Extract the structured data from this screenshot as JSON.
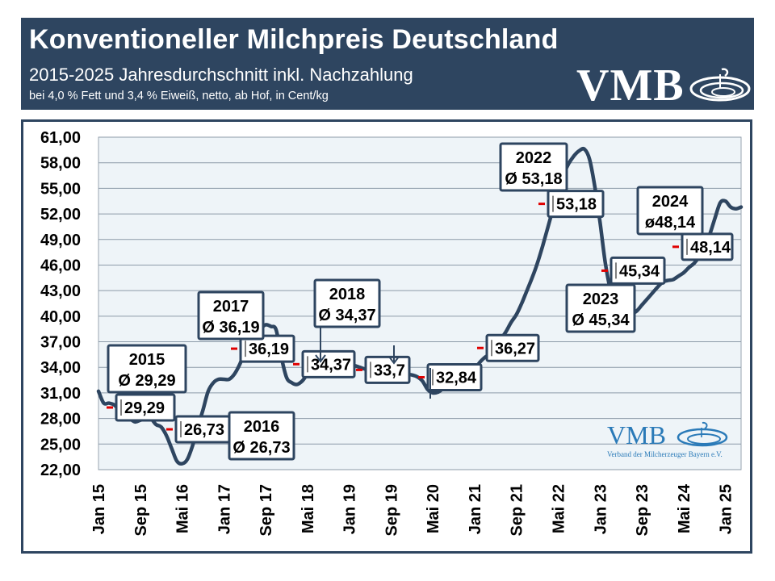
{
  "header": {
    "title": "Konventioneller Milchpreis Deutschland",
    "subtitle": "2015-2025 Jahresdurchschnitt inkl. Nachzahlung",
    "note": "bei 4,0 % Fett und 3,4 % Eiweiß, netto, ab Hof, in Cent/kg",
    "logo_text": "VMB"
  },
  "logo_bottom": {
    "text": "VMB",
    "subtext": "Verband der Milcherzeuger Bayern e.V."
  },
  "colors": {
    "header_bg": "#2e4560",
    "line": "#2e4560",
    "plot_bg": "#eef4f8",
    "grid": "#8c9aa8",
    "avg_marker": "#e00000",
    "logo_blue": "#2a7ab8"
  },
  "chart_data": {
    "type": "line",
    "title": "Konventioneller Milchpreis Deutschland",
    "subtitle": "2015-2025 Jahresdurchschnitt inkl. Nachzahlung",
    "ylabel": "",
    "xlabel": "",
    "ylim": [
      22,
      61
    ],
    "y_ticks": [
      "61,00",
      "58,00",
      "55,00",
      "52,00",
      "49,00",
      "46,00",
      "43,00",
      "40,00",
      "37,00",
      "34,00",
      "31,00",
      "28,00",
      "25,00",
      "22,00"
    ],
    "y_tick_values": [
      61,
      58,
      55,
      52,
      49,
      46,
      43,
      40,
      37,
      34,
      31,
      28,
      25,
      22
    ],
    "x_ticks": [
      "Jan 15",
      "Sep 15",
      "Mai 16",
      "Jan 17",
      "Sep 17",
      "Mai 18",
      "Jan 19",
      "Sep 19",
      "Mai 20",
      "Jan 21",
      "Sep 21",
      "Mai 22",
      "Jan 23",
      "Sep 23",
      "Mai 24",
      "Jan 25"
    ],
    "x_tick_months": [
      0,
      8,
      16,
      24,
      32,
      40,
      48,
      56,
      64,
      72,
      80,
      88,
      96,
      104,
      112,
      120
    ],
    "x_range_months": [
      0,
      123
    ],
    "grid": true,
    "series": [
      {
        "months": [
          0,
          1,
          2,
          3,
          4,
          5,
          6,
          7,
          8,
          9,
          10,
          11,
          12,
          13,
          14,
          15,
          16,
          17,
          18,
          19,
          20,
          21,
          22,
          23,
          24,
          25,
          26,
          27,
          28,
          29,
          30,
          31,
          32,
          33,
          34,
          35,
          36,
          37,
          38,
          39,
          40,
          41,
          42,
          43,
          44,
          45,
          46,
          47,
          48,
          49,
          50,
          51,
          52,
          53,
          54,
          55,
          56,
          57,
          58,
          59,
          60,
          61,
          62,
          63,
          64,
          65,
          66,
          67,
          68,
          69,
          70,
          71,
          72,
          73,
          74,
          75,
          76,
          77,
          78,
          79,
          80,
          81,
          82,
          83,
          84,
          85,
          86,
          87,
          88,
          89,
          90,
          91,
          92,
          93,
          94,
          95,
          96,
          97,
          98,
          99,
          100,
          101,
          102,
          103,
          104,
          105,
          106,
          107,
          108,
          109,
          110,
          111,
          112,
          113,
          114,
          115,
          116,
          117,
          118,
          119,
          120,
          121,
          122,
          123
        ],
        "values": [
          31.2,
          29.8,
          29.8,
          29.6,
          29.0,
          28.5,
          28.0,
          27.6,
          27.8,
          28.0,
          28.0,
          27.3,
          27.0,
          26.0,
          24.5,
          23.0,
          22.7,
          23.2,
          24.8,
          27.0,
          29.0,
          31.2,
          32.2,
          32.6,
          32.6,
          32.6,
          33.2,
          34.3,
          35.8,
          36.8,
          37.6,
          38.5,
          39.0,
          38.8,
          38.4,
          35.2,
          32.8,
          32.2,
          32.0,
          32.4,
          33.2,
          33.7,
          33.9,
          33.9,
          34.0,
          34.0,
          34.1,
          34.3,
          34.3,
          34.2,
          34.0,
          33.8,
          33.7,
          33.7,
          33.7,
          33.6,
          33.5,
          33.4,
          33.3,
          33.2,
          33.1,
          32.9,
          32.4,
          31.4,
          31.0,
          31.1,
          31.5,
          31.8,
          32.0,
          32.2,
          32.6,
          33.2,
          33.8,
          34.6,
          35.2,
          35.6,
          36.3,
          37.3,
          38.2,
          39.3,
          40.2,
          41.5,
          43.0,
          44.5,
          46.2,
          48.2,
          50.4,
          52.6,
          54.8,
          56.6,
          57.9,
          58.8,
          59.4,
          59.6,
          58.4,
          55.2,
          51.0,
          46.3,
          43.0,
          41.0,
          40.3,
          40.3,
          40.3,
          40.6,
          41.3,
          42.0,
          42.7,
          43.4,
          44.0,
          44.2,
          44.3,
          44.7,
          45.1,
          45.7,
          46.2,
          47.0,
          48.2,
          49.6,
          51.5,
          53.3,
          53.5,
          52.8,
          52.6,
          52.8
        ]
      }
    ],
    "annual_averages": [
      {
        "year": "2015",
        "value": 29.29,
        "value_label": "29,29",
        "year_label": "2015",
        "avg_label": "Ø 29,29"
      },
      {
        "year": "2016",
        "value": 26.73,
        "value_label": "26,73",
        "year_label": "2016",
        "avg_label": "Ø 26,73"
      },
      {
        "year": "2017",
        "value": 36.19,
        "value_label": "36,19",
        "year_label": "2017",
        "avg_label": "Ø 36,19"
      },
      {
        "year": "2018",
        "value": 34.37,
        "value_label": "34,37",
        "year_label": "2018",
        "avg_label": "Ø 34,37"
      },
      {
        "year": "2019",
        "value": 33.7,
        "value_label": "33,7",
        "year_label": "",
        "avg_label": ""
      },
      {
        "year": "2020",
        "value": 32.84,
        "value_label": "32,84",
        "year_label": "",
        "avg_label": ""
      },
      {
        "year": "2021",
        "value": 36.27,
        "value_label": "36,27",
        "year_label": "",
        "avg_label": ""
      },
      {
        "year": "2022",
        "value": 53.18,
        "value_label": "53,18",
        "year_label": "2022",
        "avg_label": "Ø 53,18"
      },
      {
        "year": "2023",
        "value": 45.34,
        "value_label": "45,34",
        "year_label": "2023",
        "avg_label": "Ø 45,34"
      },
      {
        "year": "2024",
        "value": 48.14,
        "value_label": "48,14",
        "year_label": "2024",
        "avg_label": "ø48,14"
      }
    ]
  }
}
